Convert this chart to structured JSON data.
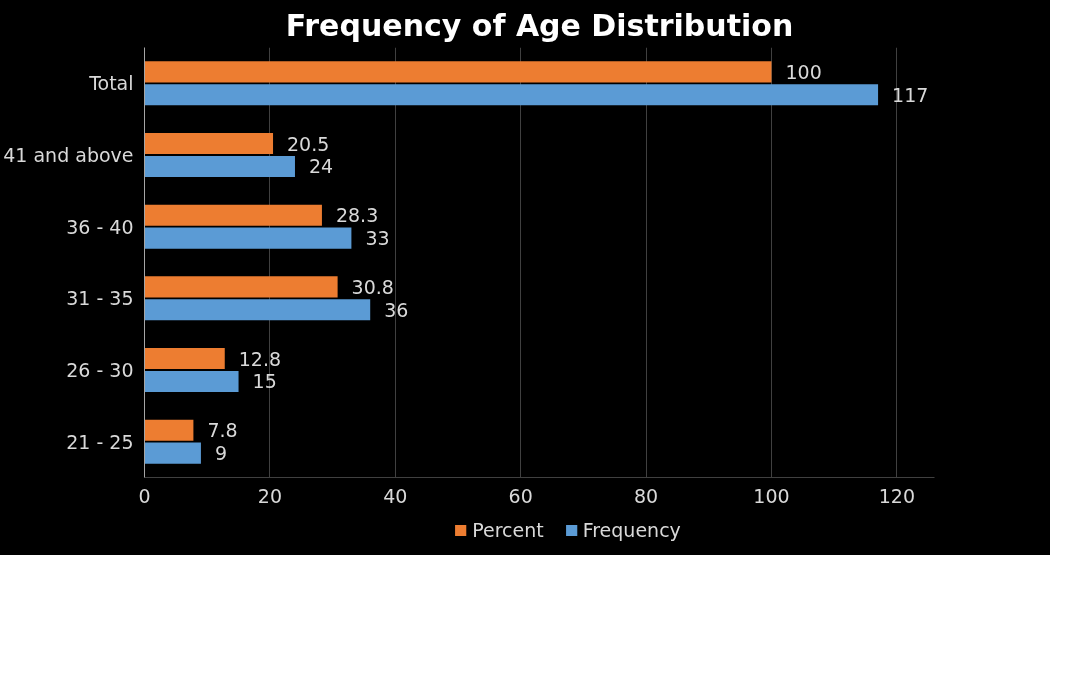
{
  "chart_data": {
    "type": "bar",
    "orientation": "horizontal",
    "title": "Frequency of Age Distribution",
    "categories": [
      "Total",
      "41 and above",
      "36 - 40",
      "31 - 35",
      "26 - 30",
      "21 - 25"
    ],
    "series": [
      {
        "name": "Percent",
        "color": "#ed7d31",
        "values": [
          100,
          20.5,
          28.3,
          30.8,
          12.8,
          7.8
        ]
      },
      {
        "name": "Frequency",
        "color": "#5b9bd5",
        "values": [
          117,
          24,
          33,
          36,
          15,
          9
        ]
      }
    ],
    "xlim": [
      0,
      126
    ],
    "xticks": [
      0,
      20,
      40,
      60,
      80,
      100,
      120
    ],
    "grid": "x",
    "legend": "bottom",
    "data_labels": true
  }
}
